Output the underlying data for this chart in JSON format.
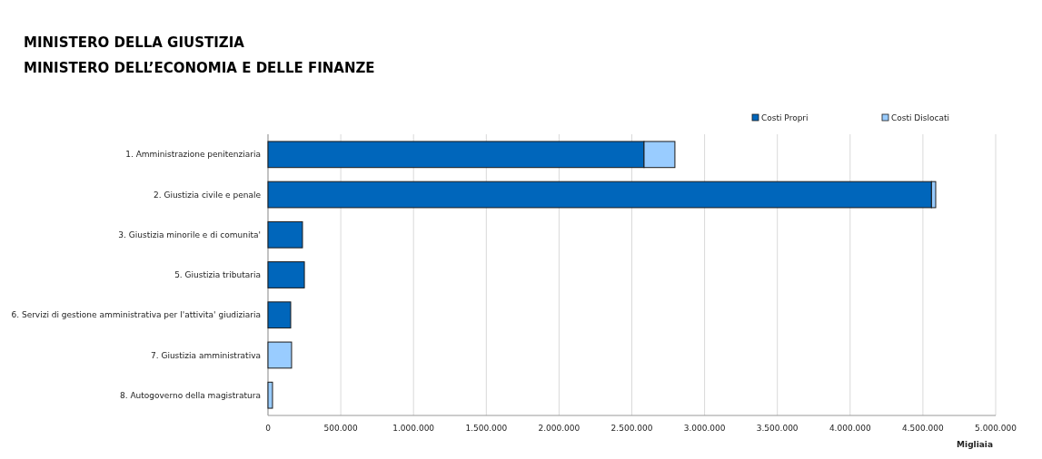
{
  "chart_data": {
    "type": "bar",
    "orientation": "horizontal",
    "stacked": true,
    "title": "MINISTERO DELLA GIUSTIZIA",
    "subtitle": "MINISTERO DELL’ECONOMIA E DELLE FINANZE",
    "xlabel": "Migliaia",
    "categories": [
      "1. Amministrazione penitenziaria",
      "2. Giustizia civile e penale",
      "3. Giustizia minorile e di comunita'",
      "5. Giustizia tributaria",
      "6. Servizi di gestione amministrativa per l'attivita' giudiziaria",
      "7. Giustizia amministrativa",
      "8. Autogoverno della magistratura"
    ],
    "series": [
      {
        "name": "Costi Propri",
        "color": "#0066bb",
        "values": [
          2584000,
          4559000,
          237000,
          250000,
          156000,
          0,
          0
        ]
      },
      {
        "name": "Costi Dislocati",
        "color": "#99ccff",
        "values": [
          212000,
          29000,
          0,
          0,
          0,
          162000,
          31000
        ]
      }
    ],
    "xlim": [
      0,
      5000000
    ],
    "xticks": [
      {
        "value": 0,
        "label": "0"
      },
      {
        "value": 500000,
        "label": "500.000"
      },
      {
        "value": 1000000,
        "label": "1.000.000"
      },
      {
        "value": 1500000,
        "label": "1.500.000"
      },
      {
        "value": 2000000,
        "label": "2.000.000"
      },
      {
        "value": 2500000,
        "label": "2.500.000"
      },
      {
        "value": 3000000,
        "label": "3.000.000"
      },
      {
        "value": 3500000,
        "label": "3.500.000"
      },
      {
        "value": 4000000,
        "label": "4.000.000"
      },
      {
        "value": 4500000,
        "label": "4.500.000"
      },
      {
        "value": 5000000,
        "label": "5.000.000"
      }
    ],
    "grid": "x",
    "legend": "top right"
  }
}
